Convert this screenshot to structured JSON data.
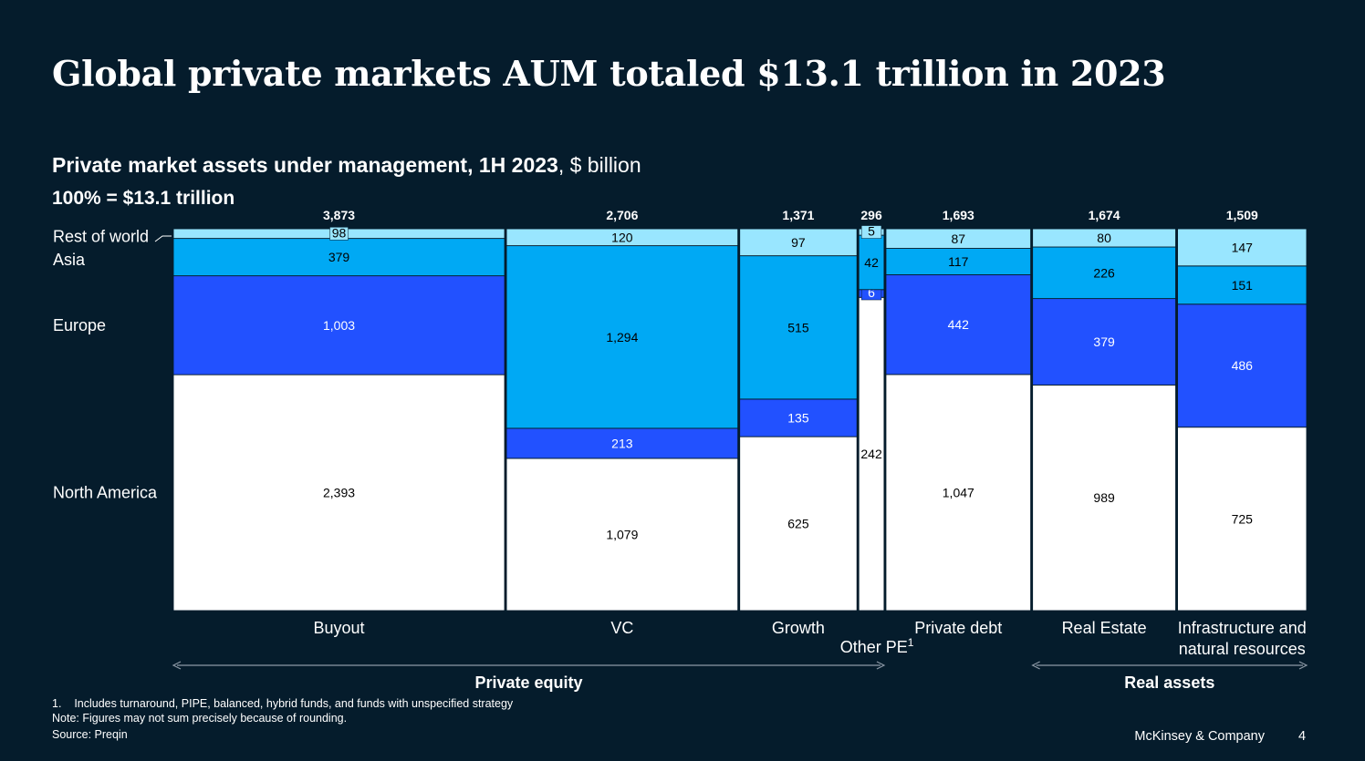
{
  "title": "Global private markets AUM totaled $13.1 trillion in 2023",
  "subtitle_bold": "Private market assets under management, 1H 2023",
  "subtitle_rest": ", $ billion",
  "total_label": "100% = $13.1 trillion",
  "colors": {
    "background": "#051c2c",
    "north_america": "#ffffff",
    "europe": "#2251ff",
    "asia": "#00a9f4",
    "rest_of_world": "#99e6ff"
  },
  "chart_data": {
    "type": "bar",
    "subtype": "marimekko",
    "categories": [
      "Buyout",
      "VC",
      "Growth",
      "Other PE",
      "Private debt",
      "Real Estate",
      "Infrastructure and natural resources"
    ],
    "category_lines": [
      [
        "Buyout"
      ],
      [
        "VC"
      ],
      [
        "Growth"
      ],
      [
        "Other PE"
      ],
      [
        "Private debt"
      ],
      [
        "Real Estate"
      ],
      [
        "Infrastructure and",
        "natural resources"
      ]
    ],
    "totals": [
      "3,873",
      "2,706",
      "1,371",
      "296",
      "1,693",
      "1,674",
      "1,509"
    ],
    "total_values": [
      3873,
      2706,
      1371,
      296,
      1693,
      1674,
      1509
    ],
    "series": [
      {
        "name": "North America",
        "values": [
          2393,
          1079,
          625,
          242,
          1047,
          989,
          725
        ],
        "labels": [
          "2,393",
          "1,079",
          "625",
          "242",
          "1,047",
          "989",
          "725"
        ]
      },
      {
        "name": "Europe",
        "values": [
          1003,
          213,
          135,
          6,
          442,
          379,
          486
        ],
        "labels": [
          "1,003",
          "213",
          "135",
          "6",
          "442",
          "379",
          "486"
        ]
      },
      {
        "name": "Asia",
        "values": [
          379,
          1294,
          515,
          42,
          117,
          226,
          151
        ],
        "labels": [
          "379",
          "1,294",
          "515",
          "42",
          "117",
          "226",
          "151"
        ]
      },
      {
        "name": "Rest of world",
        "values": [
          98,
          120,
          97,
          5,
          87,
          80,
          147
        ],
        "labels": [
          "98",
          "120",
          "97",
          "5",
          "87",
          "80",
          "147"
        ]
      }
    ],
    "groups": [
      {
        "name": "Private equity",
        "categories": [
          "Buyout",
          "VC",
          "Growth",
          "Other PE"
        ]
      },
      {
        "name": "Real assets",
        "categories": [
          "Real Estate",
          "Infrastructure and natural resources"
        ]
      }
    ],
    "footnote_marker": "1"
  },
  "footnotes": {
    "note1": "1.    Includes turnaround, PIPE, balanced, hybrid funds, and funds with unspecified strategy",
    "note": "Note: Figures may not sum precisely because of rounding.",
    "source": "Source: Preqin"
  },
  "brand": "McKinsey & Company",
  "page_number": "4"
}
